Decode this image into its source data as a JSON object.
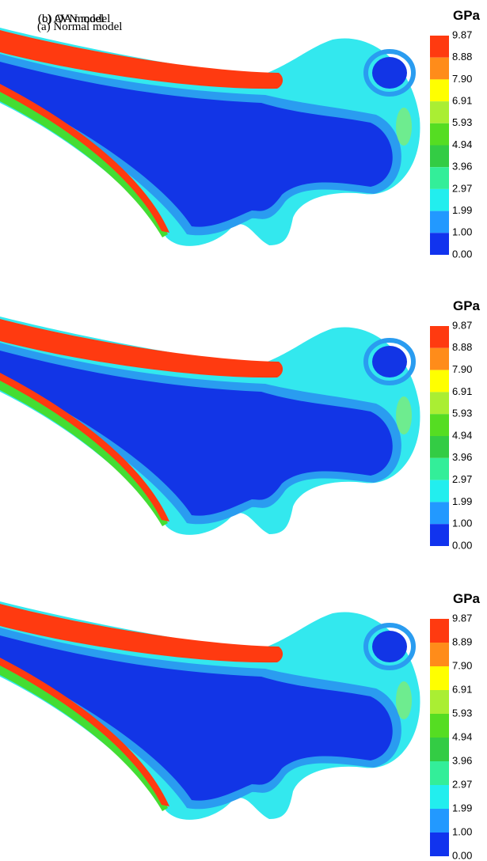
{
  "panels": [
    {
      "label": "(a) Normal model",
      "unit": "GPa",
      "legend": [
        "9.87",
        "8.88",
        "7.90",
        "6.91",
        "5.93",
        "4.94",
        "3.96",
        "2.97",
        "1.99",
        "1.00",
        "0.00"
      ]
    },
    {
      "label": "(b) OA model",
      "unit": "GPa",
      "legend": [
        "9.87",
        "8.88",
        "7.90",
        "6.91",
        "5.93",
        "4.94",
        "3.96",
        "2.97",
        "1.99",
        "1.00",
        "0.00"
      ]
    },
    {
      "label": "(c) AVN model",
      "unit": "GPa",
      "legend": [
        "9.87",
        "8.89",
        "7.90",
        "6.91",
        "5.93",
        "4.94",
        "3.96",
        "2.97",
        "1.99",
        "1.00",
        "0.00"
      ]
    }
  ]
}
